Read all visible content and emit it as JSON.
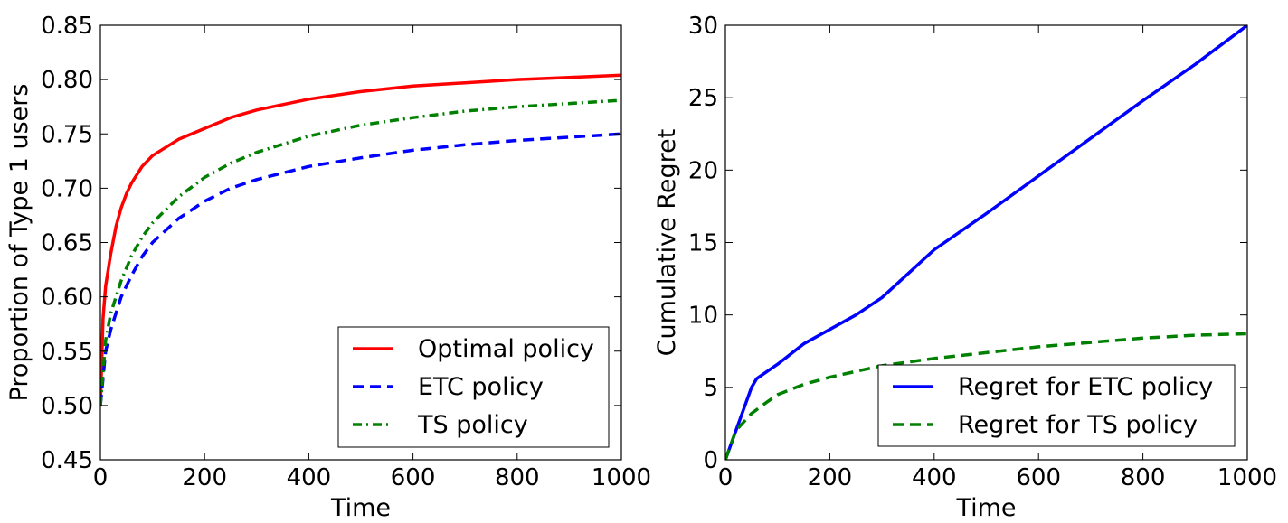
{
  "chart_data": [
    {
      "type": "line",
      "xlabel": "Time",
      "ylabel": "Proportion of Type 1 users",
      "xlim": [
        0,
        1000
      ],
      "ylim": [
        0.45,
        0.85
      ],
      "xticks": [
        "0",
        "200",
        "400",
        "600",
        "800",
        "1000"
      ],
      "yticks": [
        "0.45",
        "0.50",
        "0.55",
        "0.60",
        "0.65",
        "0.70",
        "0.75",
        "0.80",
        "0.85"
      ],
      "grid": false,
      "legend_position": "lower-right",
      "series": [
        {
          "name": "Optimal policy",
          "color": "#ff0000",
          "style": "solid",
          "x": [
            0,
            5,
            10,
            20,
            30,
            40,
            50,
            60,
            80,
            100,
            150,
            200,
            250,
            300,
            400,
            500,
            600,
            700,
            800,
            900,
            1000
          ],
          "y": [
            0.5,
            0.58,
            0.61,
            0.64,
            0.665,
            0.682,
            0.695,
            0.705,
            0.72,
            0.73,
            0.745,
            0.755,
            0.765,
            0.772,
            0.782,
            0.789,
            0.794,
            0.797,
            0.8,
            0.802,
            0.804
          ]
        },
        {
          "name": "ETC policy",
          "color": "#0000ff",
          "style": "dashed",
          "x": [
            0,
            10,
            20,
            40,
            60,
            80,
            100,
            150,
            200,
            250,
            300,
            400,
            500,
            600,
            700,
            800,
            900,
            1000
          ],
          "y": [
            0.5,
            0.55,
            0.57,
            0.6,
            0.62,
            0.637,
            0.65,
            0.672,
            0.688,
            0.7,
            0.708,
            0.72,
            0.728,
            0.735,
            0.74,
            0.744,
            0.747,
            0.75
          ]
        },
        {
          "name": "TS policy",
          "color": "#008000",
          "style": "dashdot",
          "x": [
            0,
            10,
            20,
            40,
            60,
            80,
            100,
            150,
            200,
            250,
            300,
            400,
            500,
            600,
            700,
            800,
            900,
            1000
          ],
          "y": [
            0.5,
            0.56,
            0.585,
            0.615,
            0.638,
            0.655,
            0.668,
            0.692,
            0.71,
            0.723,
            0.733,
            0.748,
            0.758,
            0.765,
            0.771,
            0.775,
            0.778,
            0.781
          ]
        }
      ]
    },
    {
      "type": "line",
      "xlabel": "Time",
      "ylabel": "Cumulative Regret",
      "xlim": [
        0,
        1000
      ],
      "ylim": [
        0,
        30
      ],
      "xticks": [
        "0",
        "200",
        "400",
        "600",
        "800",
        "1000"
      ],
      "yticks": [
        "0",
        "5",
        "10",
        "15",
        "20",
        "25",
        "30"
      ],
      "grid": false,
      "legend_position": "lower-right",
      "series": [
        {
          "name": "Regret for ETC policy",
          "color": "#0000ff",
          "style": "solid",
          "x": [
            0,
            50,
            60,
            100,
            150,
            200,
            250,
            300,
            400,
            500,
            600,
            700,
            800,
            900,
            1000
          ],
          "y": [
            0,
            5.0,
            5.6,
            6.6,
            8.0,
            9.0,
            10.0,
            11.2,
            14.5,
            17.0,
            19.6,
            22.2,
            24.8,
            27.3,
            30.0
          ]
        },
        {
          "name": "Regret for TS policy",
          "color": "#008000",
          "style": "dashed",
          "x": [
            0,
            20,
            50,
            80,
            100,
            150,
            200,
            250,
            300,
            400,
            500,
            600,
            700,
            800,
            900,
            1000
          ],
          "y": [
            0,
            2.0,
            3.2,
            4.0,
            4.5,
            5.2,
            5.7,
            6.1,
            6.5,
            7.0,
            7.4,
            7.8,
            8.1,
            8.4,
            8.6,
            8.7
          ]
        }
      ]
    }
  ]
}
